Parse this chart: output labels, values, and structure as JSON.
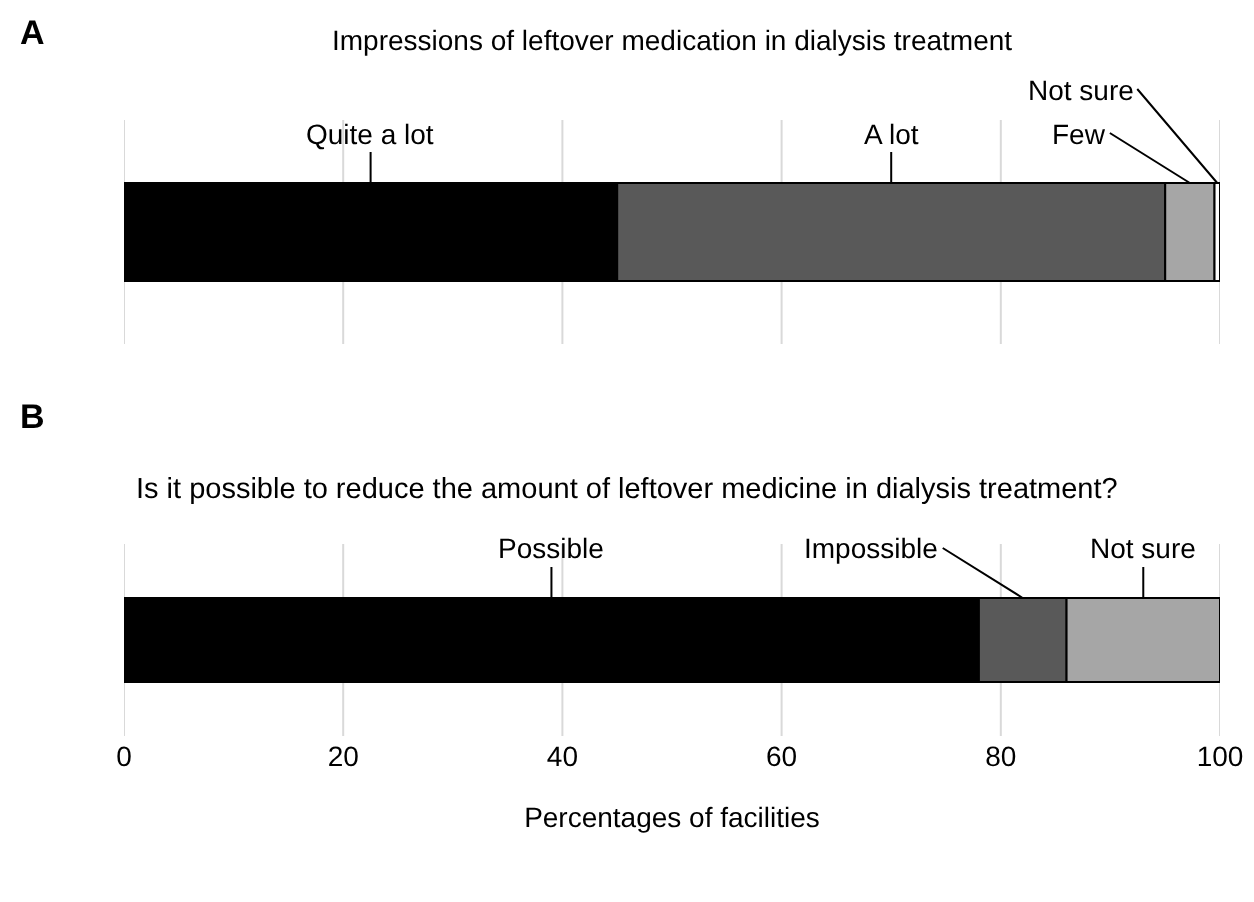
{
  "chart_data": [
    {
      "type": "bar",
      "orientation": "horizontal",
      "stacked": true,
      "title": "Impressions of leftover medication in dialysis treatment",
      "annotations": [
        "A"
      ],
      "categories": [
        null
      ],
      "series": [
        {
          "name": "Quite a lot",
          "color": "#000000",
          "values": [
            45
          ]
        },
        {
          "name": "A lot",
          "color": "#595959",
          "values": [
            50
          ]
        },
        {
          "name": "Few",
          "color": "#a6a6a6",
          "values": [
            4.5
          ]
        },
        {
          "name": "Not sure",
          "color": "#ffffff",
          "values": [
            0.5
          ]
        }
      ],
      "xlim": [
        0,
        100
      ],
      "xticks": [
        0,
        20,
        40,
        60,
        80,
        100
      ],
      "grid": "x",
      "tick_labels": false
    },
    {
      "type": "bar",
      "orientation": "horizontal",
      "stacked": true,
      "title": "Is it possible to reduce the amount of leftover medicine in dialysis treatment?",
      "annotations": [
        "B"
      ],
      "categories": [
        null
      ],
      "xlabel": "Percentages of facilities",
      "series": [
        {
          "name": "Possible",
          "color": "#000000",
          "values": [
            78
          ]
        },
        {
          "name": "Impossible",
          "color": "#595959",
          "values": [
            8
          ]
        },
        {
          "name": "Not sure",
          "color": "#a6a6a6",
          "values": [
            14
          ]
        }
      ],
      "xlim": [
        0,
        100
      ],
      "xticks": [
        0,
        20,
        40,
        60,
        80,
        100
      ],
      "grid": "x",
      "tick_labels": "x"
    }
  ]
}
